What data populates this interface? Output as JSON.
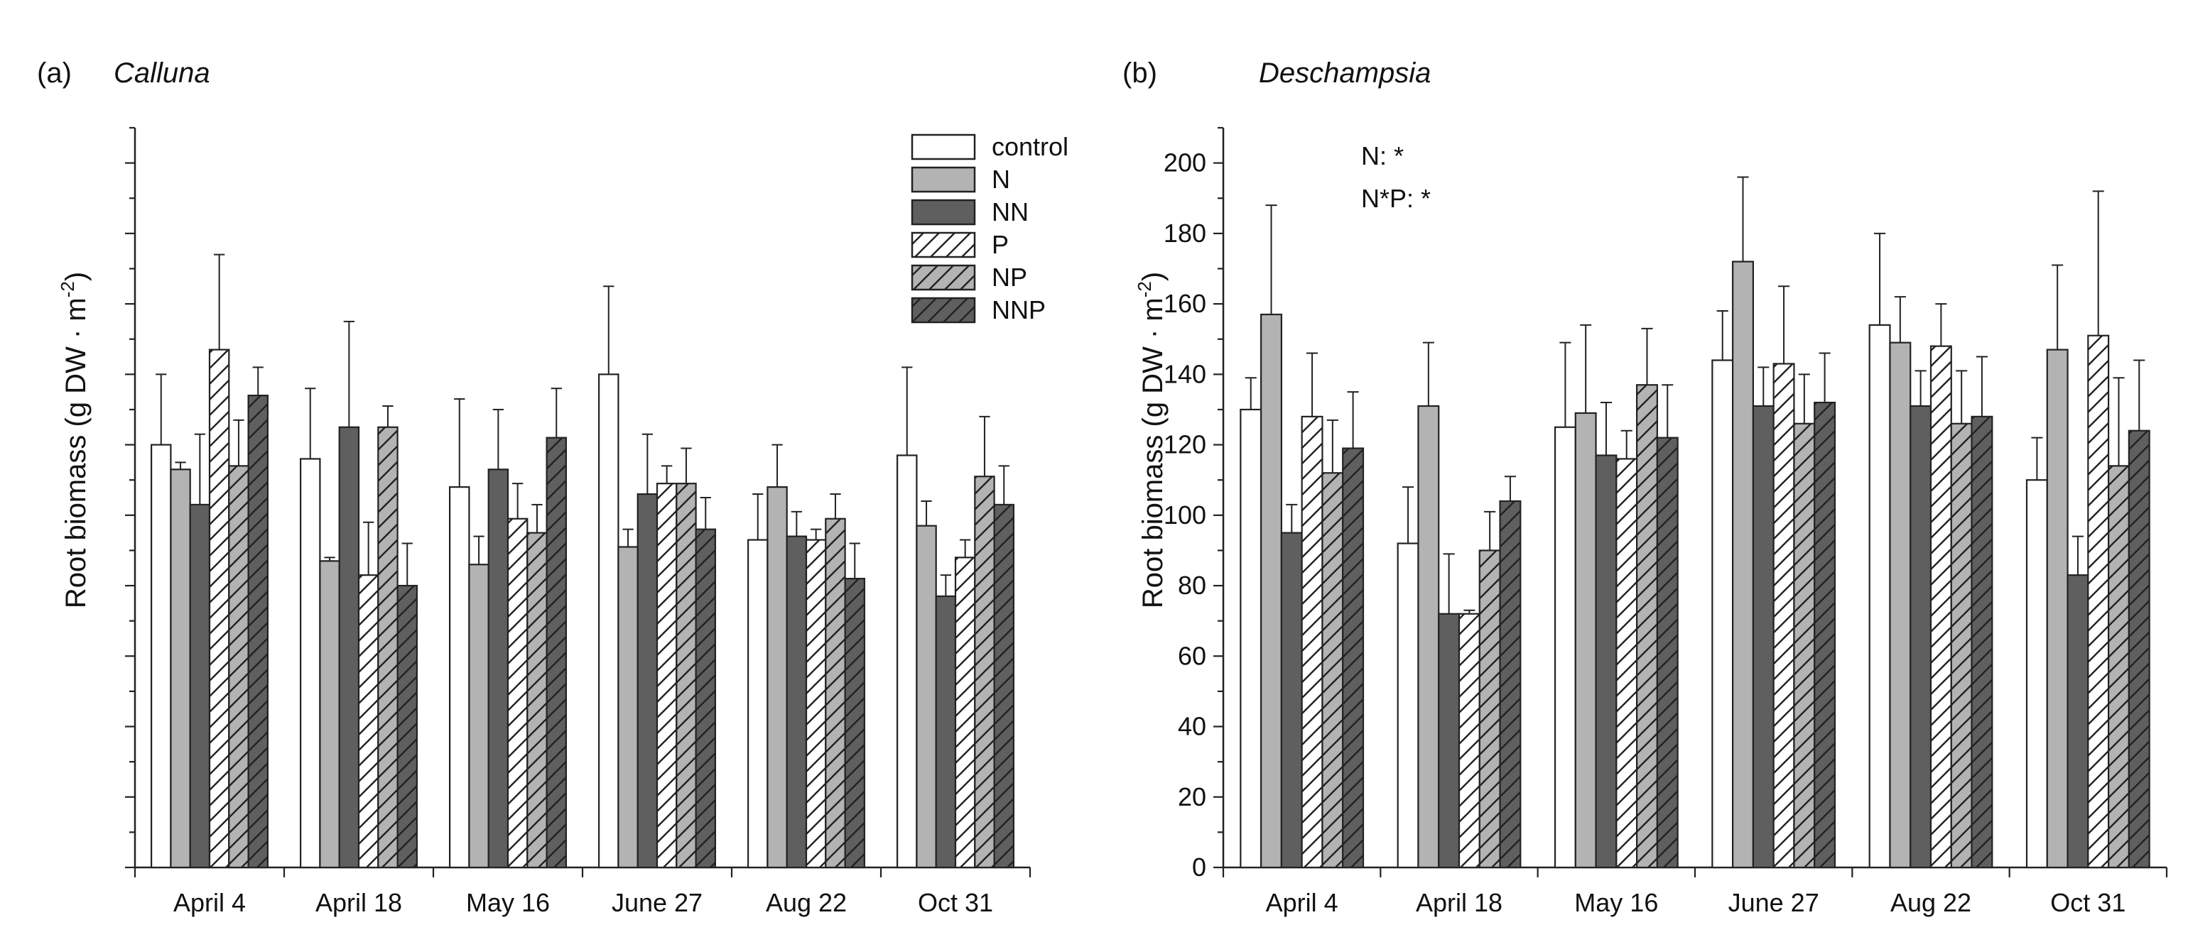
{
  "chart_data": [
    {
      "type": "bar",
      "panel_label": "(a)",
      "title": "Calluna",
      "ylabel": "Root biomass (g DW · m",
      "ylabel_sup": "-2",
      "ylabel_close": ")",
      "ylim": [
        0,
        210
      ],
      "y_ticks_major": [
        0,
        20,
        40,
        60,
        80,
        100,
        120,
        140,
        160,
        180,
        200
      ],
      "y_tick_labels_shown": false,
      "categories": [
        "April 4",
        "April 18",
        "May 16",
        "June 27",
        "Aug 22",
        "Oct 31"
      ],
      "legend_position": "top-right",
      "series": [
        {
          "name": "control",
          "values": [
            120,
            116,
            108,
            140,
            93,
            117
          ],
          "errors": [
            20,
            20,
            25,
            25,
            13,
            25
          ]
        },
        {
          "name": "N",
          "values": [
            113,
            87,
            86,
            91,
            108,
            97
          ],
          "errors": [
            2,
            1,
            8,
            5,
            12,
            7
          ]
        },
        {
          "name": "NN",
          "values": [
            103,
            125,
            113,
            106,
            94,
            77
          ],
          "errors": [
            20,
            30,
            17,
            17,
            7,
            6
          ]
        },
        {
          "name": "P",
          "values": [
            147,
            83,
            99,
            109,
            93,
            88
          ],
          "errors": [
            27,
            15,
            10,
            5,
            3,
            5
          ]
        },
        {
          "name": "NP",
          "values": [
            114,
            125,
            95,
            109,
            99,
            111
          ],
          "errors": [
            13,
            6,
            8,
            10,
            7,
            17
          ]
        },
        {
          "name": "NNP",
          "values": [
            134,
            80,
            122,
            96,
            82,
            103
          ],
          "errors": [
            8,
            12,
            14,
            9,
            10,
            11
          ]
        }
      ]
    },
    {
      "type": "bar",
      "panel_label": "(b)",
      "title": "Deschampsia",
      "ylabel": "Root biomass (g DW · m",
      "ylabel_sup": "-2",
      "ylabel_close": ")",
      "ylim": [
        0,
        210
      ],
      "y_ticks_major": [
        0,
        20,
        40,
        60,
        80,
        100,
        120,
        140,
        160,
        180,
        200
      ],
      "y_tick_labels": [
        "0",
        "20",
        "40",
        "60",
        "80",
        "100",
        "120",
        "140",
        "160",
        "180",
        "200"
      ],
      "categories": [
        "April 4",
        "April 18",
        "May 16",
        "June 27",
        "Aug 22",
        "Oct 31"
      ],
      "annotations": [
        "N: *",
        "N*P: *"
      ],
      "series": [
        {
          "name": "control",
          "values": [
            130,
            92,
            125,
            144,
            154,
            110
          ],
          "errors": [
            9,
            16,
            24,
            14,
            26,
            12
          ]
        },
        {
          "name": "N",
          "values": [
            157,
            131,
            129,
            172,
            149,
            147
          ],
          "errors": [
            31,
            18,
            25,
            24,
            13,
            24
          ]
        },
        {
          "name": "NN",
          "values": [
            95,
            72,
            117,
            131,
            131,
            83
          ],
          "errors": [
            8,
            17,
            15,
            11,
            10,
            11
          ]
        },
        {
          "name": "P",
          "values": [
            128,
            72,
            116,
            143,
            148,
            151
          ],
          "errors": [
            18,
            1,
            8,
            22,
            12,
            41
          ]
        },
        {
          "name": "NP",
          "values": [
            112,
            90,
            137,
            126,
            126,
            114
          ],
          "errors": [
            15,
            11,
            16,
            14,
            15,
            25
          ]
        },
        {
          "name": "NNP",
          "values": [
            119,
            104,
            122,
            132,
            128,
            124
          ],
          "errors": [
            16,
            7,
            15,
            14,
            17,
            20
          ]
        }
      ]
    }
  ],
  "series_styles": [
    {
      "name": "control",
      "fill": "#ffffff",
      "hatch": false
    },
    {
      "name": "N",
      "fill": "#b3b3b3",
      "hatch": false
    },
    {
      "name": "NN",
      "fill": "#5f5f5f",
      "hatch": false
    },
    {
      "name": "P",
      "fill": "#ffffff",
      "hatch": true
    },
    {
      "name": "NP",
      "fill": "#b3b3b3",
      "hatch": true
    },
    {
      "name": "NNP",
      "fill": "#5f5f5f",
      "hatch": true
    }
  ],
  "colors": {
    "stroke": "#222222",
    "background": "#ffffff",
    "text": "#111111"
  }
}
